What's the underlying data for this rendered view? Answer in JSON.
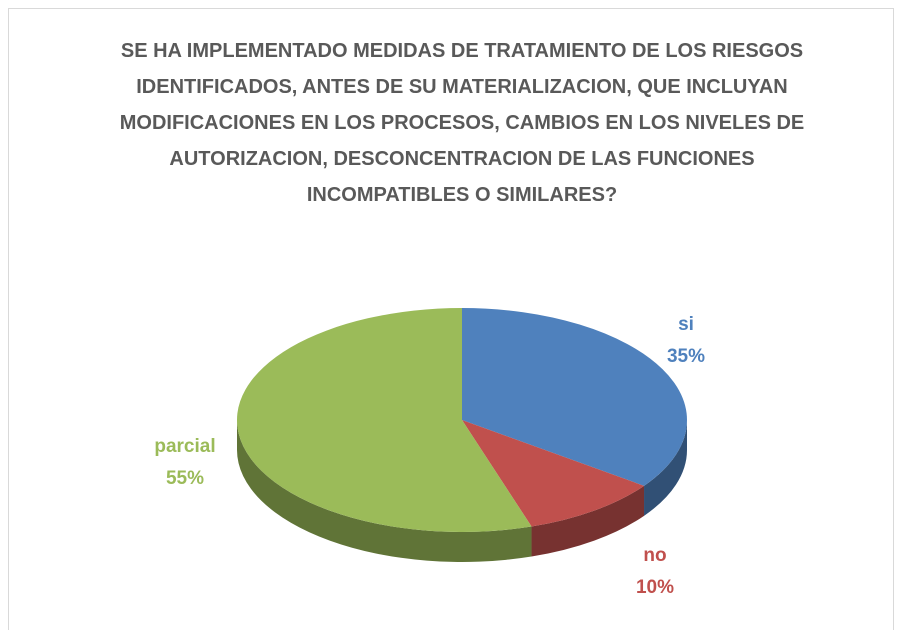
{
  "chart_data": {
    "type": "pie",
    "title": "SE HA IMPLEMENTADO MEDIDAS DE TRATAMIENTO DE LOS RIESGOS IDENTIFICADOS, ANTES DE SU MATERIALIZACION, QUE INCLUYAN MODIFICACIONES EN LOS PROCESOS, CAMBIOS EN LOS NIVELES DE AUTORIZACION, DESCONCENTRACION DE LAS FUNCIONES INCOMPATIBLES O SIMILARES?",
    "categories": [
      "si",
      "no",
      "parcial"
    ],
    "values": [
      35,
      10,
      55
    ],
    "value_labels": [
      "35%",
      "10%",
      "55%"
    ],
    "colors": [
      "#4f81bd",
      "#c0504d",
      "#9bbb59"
    ]
  }
}
